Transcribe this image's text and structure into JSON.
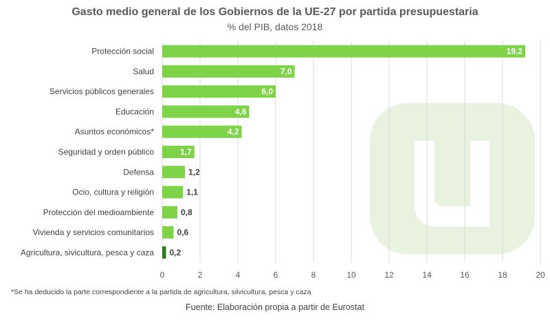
{
  "chart_data": {
    "type": "bar",
    "orientation": "horizontal",
    "title": "Gasto medio general de los Gobiernos de la UE-27 por partida presupuestaria",
    "subtitle": "% del PIB, datos 2018",
    "categories": [
      "Protección social",
      "Salud",
      "Servicios públicos generales",
      "Educación",
      "Asuntos económicos*",
      "Seguridad y orden público",
      "Defensa",
      "Ocio, cultura y religión",
      "Protección del medioambiente",
      "Vivienda y servicios comunitarios",
      "Agricultura, sivicultura, pesca y caza"
    ],
    "values": [
      19.2,
      7.0,
      6.0,
      4.6,
      4.2,
      1.7,
      1.2,
      1.1,
      0.8,
      0.6,
      0.2
    ],
    "value_labels": [
      "19,2",
      "7,0",
      "6,0",
      "4,6",
      "4,2",
      "1,7",
      "1,2",
      "1,1",
      "0,8",
      "0,6",
      "0,2"
    ],
    "xlim": [
      0,
      20
    ],
    "xticks": [
      0,
      2,
      4,
      6,
      8,
      10,
      12,
      14,
      16,
      18,
      20
    ],
    "grid": true,
    "legend": "none",
    "colors": {
      "bar": "#7ed348",
      "bar_last": "#2e7d1c",
      "grid": "#d9d9d9",
      "watermark": "#e8f2df"
    }
  },
  "footnote": "*Se ha deducido la parte correspondiente a la partida de agricultura,  silvicultura,  pesca y caza",
  "source": "Fuente: Elaboración propia a partir de Eurostat",
  "watermark_icon": "u-logo-icon"
}
